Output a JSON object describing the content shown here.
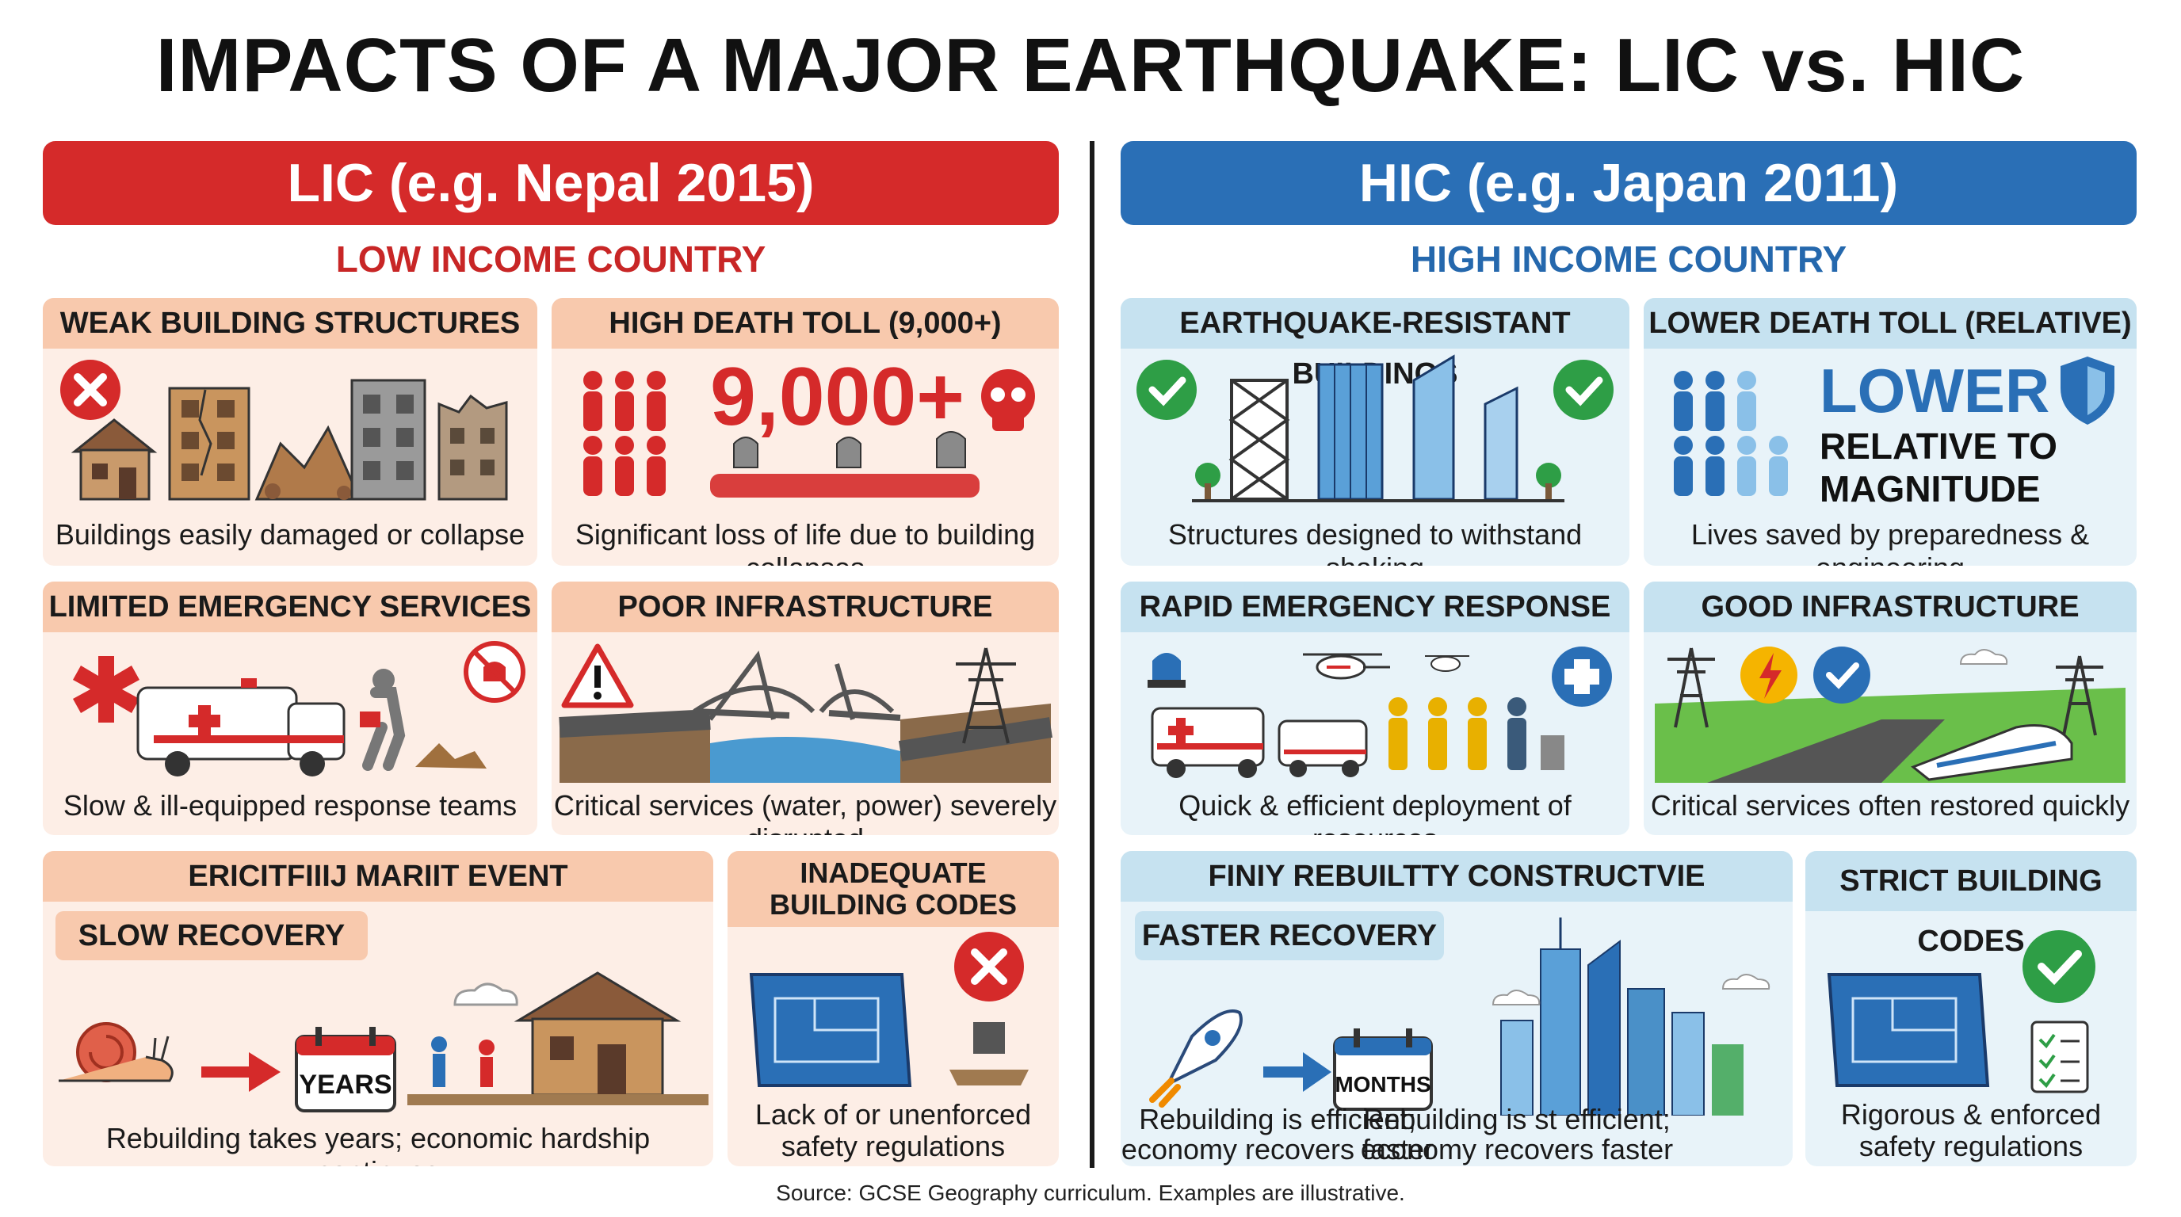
{
  "title": "IMPACTS OF A MAJOR EARTHQUAKE: LIC vs. HIC",
  "lic": {
    "banner": "LIC (e.g. Nepal 2015)",
    "subtitle": "LOW INCOME COUNTRY",
    "cards": [
      {
        "heading": "WEAK BUILDING STRUCTURES",
        "caption": "Buildings easily damaged or collapse"
      },
      {
        "heading": "HIGH DEATH TOLL (9,000+)",
        "big": "9,000+",
        "caption": "Significant loss of life due to building collapses"
      },
      {
        "heading": "LIMITED EMERGENCY SERVICES",
        "caption": "Slow & ill-equipped response teams"
      },
      {
        "heading": "POOR INFRASTRUCTURE",
        "caption": "Critical services (water, power) severely disrupted"
      },
      {
        "heading": "ERICITFIIIJ MARIIT EVENT",
        "pill": "SLOW RECOVERY",
        "box": "YEARS",
        "caption": "Rebuilding takes years; economic hardship continues"
      },
      {
        "heading_line1": "INADEQUATE",
        "heading_line2": "BUILDING CODES",
        "caption_line1": "Lack of or unenforced",
        "caption_line2": "safety regulations"
      }
    ]
  },
  "hic": {
    "banner": "HIC (e.g. Japan 2011)",
    "subtitle": "HIGH INCOME COUNTRY",
    "cards": [
      {
        "heading": "EARTHQUAKE-RESISTANT BUILDINGS",
        "caption": "Structures designed to withstand shaking"
      },
      {
        "heading": "LOWER DEATH TOLL (RELATIVE)",
        "big": "LOWER",
        "big_line2": "RELATIVE TO",
        "big_line3": "MAGNITUDE",
        "caption": "Lives saved by preparedness & engineering"
      },
      {
        "heading": "RAPID EMERGENCY RESPONSE",
        "caption": "Quick & efficient deployment of resources"
      },
      {
        "heading": "GOOD INFRASTRUCTURE",
        "caption": "Critical services often restored quickly"
      },
      {
        "heading": "FINIY REBUILTTY CONSTRUCTVIE",
        "pill": "FASTER RECOVERY",
        "box": "MONTHS",
        "caption_a1": "Rebuilding is efficient;",
        "caption_a2": "economy recovers faster",
        "caption_b1": "Rebuilding is st efficient;",
        "caption_b2": "economy recovers faster"
      },
      {
        "heading": "STRICT BUILDING CODES",
        "caption_line1": "Rigorous & enforced",
        "caption_line2": "safety regulations"
      }
    ]
  },
  "source": "Source: GCSE Geography curriculum. Examples are illustrative.",
  "colors": {
    "lic_red": "#d52a2a",
    "hic_blue": "#2a6fb6",
    "check_green": "#2e9e46",
    "lic_card": "#fdeee6",
    "hic_card": "#e8f3f9"
  }
}
